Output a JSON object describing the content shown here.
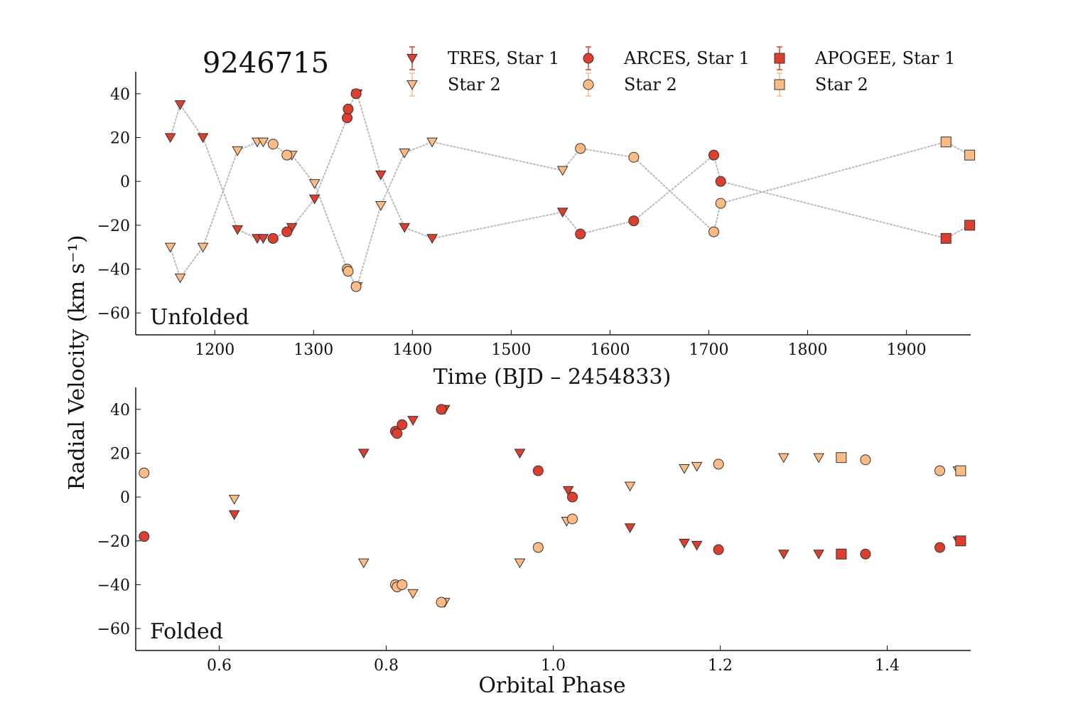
{
  "colors": {
    "star1": "#dd3e2e",
    "star2": "#fdbb84",
    "edge": "#333333",
    "model": "#bbbbbb",
    "axis": "#111111"
  },
  "chart_data": [
    {
      "type": "scatter",
      "panel": "unfolded",
      "title": "9246715",
      "panel_label": "Unfolded",
      "xlabel": "Time (BJD – 2454833)",
      "ylabel": "Radial Velocity (km s⁻¹)",
      "xlim": [
        1120,
        1965
      ],
      "ylim": [
        -70,
        50
      ],
      "xticks": [
        1200,
        1300,
        1400,
        1500,
        1600,
        1700,
        1800,
        1900
      ],
      "yticks": [
        40,
        20,
        0,
        -20,
        -40,
        -60
      ],
      "ytick_labels": [
        "40",
        "20",
        "0",
        "−20",
        "−40",
        "−60"
      ],
      "legend_position": "top",
      "legend": [
        {
          "label": "TRES, Star 1",
          "marker": "triangle",
          "star": 1
        },
        {
          "label": "Star 2",
          "marker": "triangle",
          "star": 2
        },
        {
          "label": "ARCES, Star 1",
          "marker": "circle",
          "star": 1
        },
        {
          "label": "Star 2",
          "marker": "circle",
          "star": 2
        },
        {
          "label": "APOGEE, Star 1",
          "marker": "square",
          "star": 1
        },
        {
          "label": "Star 2",
          "marker": "square",
          "star": 2
        }
      ],
      "model_star1": [
        [
          1155,
          20
        ],
        [
          1165,
          35
        ],
        [
          1188,
          20
        ],
        [
          1223,
          -22
        ],
        [
          1243,
          -26
        ],
        [
          1249,
          -26
        ],
        [
          1259,
          -26
        ],
        [
          1273,
          -23
        ],
        [
          1278,
          -21
        ],
        [
          1301,
          -8
        ],
        [
          1334,
          29
        ],
        [
          1335,
          33
        ],
        [
          1343,
          40
        ],
        [
          1344,
          40
        ],
        [
          1368,
          3
        ],
        [
          1392,
          -21
        ],
        [
          1420,
          -26
        ],
        [
          1552,
          -14
        ],
        [
          1570,
          -24
        ],
        [
          1624,
          -18
        ],
        [
          1705,
          12
        ],
        [
          1712,
          0
        ],
        [
          1940,
          -26
        ],
        [
          1964,
          -20
        ]
      ],
      "model_star2": [
        [
          1155,
          -30
        ],
        [
          1165,
          -44
        ],
        [
          1188,
          -30
        ],
        [
          1223,
          14
        ],
        [
          1243,
          18
        ],
        [
          1249,
          18
        ],
        [
          1259,
          17
        ],
        [
          1273,
          12
        ],
        [
          1278,
          12
        ],
        [
          1301,
          -1
        ],
        [
          1334,
          -40
        ],
        [
          1335,
          -41
        ],
        [
          1343,
          -48
        ],
        [
          1344,
          -48
        ],
        [
          1368,
          -11
        ],
        [
          1392,
          13
        ],
        [
          1420,
          18
        ],
        [
          1552,
          5
        ],
        [
          1570,
          15
        ],
        [
          1624,
          11
        ],
        [
          1705,
          -23
        ],
        [
          1712,
          -10
        ],
        [
          1940,
          18
        ],
        [
          1964,
          12
        ]
      ],
      "series": [
        {
          "name": "TRES, Star 1",
          "marker": "triangle",
          "star": 1,
          "x": [
            1155,
            1165,
            1188,
            1223,
            1243,
            1249,
            1278,
            1301,
            1344,
            1368,
            1392,
            1420,
            1552
          ],
          "y": [
            20,
            35,
            20,
            -22,
            -26,
            -26,
            -21,
            -8,
            40,
            3,
            -21,
            -26,
            -14
          ]
        },
        {
          "name": "TRES, Star 2",
          "marker": "triangle",
          "star": 2,
          "x": [
            1155,
            1165,
            1188,
            1223,
            1243,
            1249,
            1278,
            1301,
            1344,
            1368,
            1392,
            1420,
            1552
          ],
          "y": [
            -30,
            -44,
            -30,
            14,
            18,
            18,
            12,
            -1,
            -48,
            -11,
            13,
            18,
            5
          ]
        },
        {
          "name": "ARCES, Star 1",
          "marker": "circle",
          "star": 1,
          "x": [
            1259,
            1273,
            1334,
            1335,
            1343,
            1570,
            1624,
            1705,
            1712
          ],
          "y": [
            -26,
            -23,
            29,
            33,
            40,
            -24,
            -18,
            12,
            0
          ]
        },
        {
          "name": "ARCES, Star 2",
          "marker": "circle",
          "star": 2,
          "x": [
            1259,
            1273,
            1334,
            1335,
            1343,
            1570,
            1624,
            1705,
            1712
          ],
          "y": [
            17,
            12,
            -40,
            -41,
            -48,
            15,
            11,
            -23,
            -10
          ]
        },
        {
          "name": "APOGEE, Star 1",
          "marker": "square",
          "star": 1,
          "x": [
            1940,
            1964
          ],
          "y": [
            -26,
            -20
          ]
        },
        {
          "name": "APOGEE, Star 2",
          "marker": "square",
          "star": 2,
          "x": [
            1940,
            1964
          ],
          "y": [
            18,
            12
          ]
        }
      ]
    },
    {
      "type": "scatter",
      "panel": "folded",
      "title": "",
      "panel_label": "Folded",
      "xlabel": "Orbital Phase",
      "ylabel": "",
      "xlim": [
        0.5,
        1.5
      ],
      "ylim": [
        -70,
        50
      ],
      "xticks": [
        0.6,
        0.8,
        1.0,
        1.2,
        1.4
      ],
      "xtick_labels": [
        "0.6",
        "0.8",
        "1.0",
        "1.2",
        "1.4"
      ],
      "yticks": [
        40,
        20,
        0,
        -20,
        -40,
        -60
      ],
      "ytick_labels": [
        "40",
        "20",
        "0",
        "−20",
        "−40",
        "−60"
      ],
      "series": [
        {
          "name": "TRES, Star 1",
          "marker": "triangle",
          "star": 1,
          "x": [
            0.618,
            0.773,
            0.832,
            0.87,
            0.96,
            1.018,
            1.092,
            1.157,
            1.172,
            1.276,
            1.318,
            1.485
          ],
          "y": [
            -8,
            20,
            35,
            40,
            20,
            3,
            -14,
            -21,
            -22,
            -26,
            -26,
            -20
          ]
        },
        {
          "name": "TRES, Star 2",
          "marker": "triangle",
          "star": 2,
          "x": [
            0.618,
            0.773,
            0.832,
            0.87,
            0.96,
            1.016,
            1.092,
            1.157,
            1.172,
            1.276,
            1.318,
            1.485
          ],
          "y": [
            -1,
            -30,
            -44,
            -48,
            -30,
            -11,
            5,
            13,
            14,
            18,
            18,
            12
          ]
        },
        {
          "name": "ARCES, Star 1",
          "marker": "circle",
          "star": 1,
          "x": [
            0.51,
            0.811,
            0.813,
            0.819,
            0.866,
            0.982,
            1.023,
            1.198,
            1.374,
            1.463
          ],
          "y": [
            -18,
            30,
            29,
            33,
            40,
            12,
            0,
            -24,
            -26,
            -23
          ]
        },
        {
          "name": "ARCES, Star 2",
          "marker": "circle",
          "star": 2,
          "x": [
            0.51,
            0.811,
            0.813,
            0.819,
            0.866,
            0.982,
            1.023,
            1.198,
            1.374,
            1.463
          ],
          "y": [
            11,
            -40,
            -41,
            -40,
            -48,
            -23,
            -10,
            15,
            17,
            12
          ]
        },
        {
          "name": "APOGEE, Star 1",
          "marker": "square",
          "star": 1,
          "x": [
            1.345,
            1.488
          ],
          "y": [
            -26,
            -20
          ]
        },
        {
          "name": "APOGEE, Star 2",
          "marker": "square",
          "star": 2,
          "x": [
            1.345,
            1.488
          ],
          "y": [
            18,
            12
          ]
        }
      ]
    }
  ]
}
